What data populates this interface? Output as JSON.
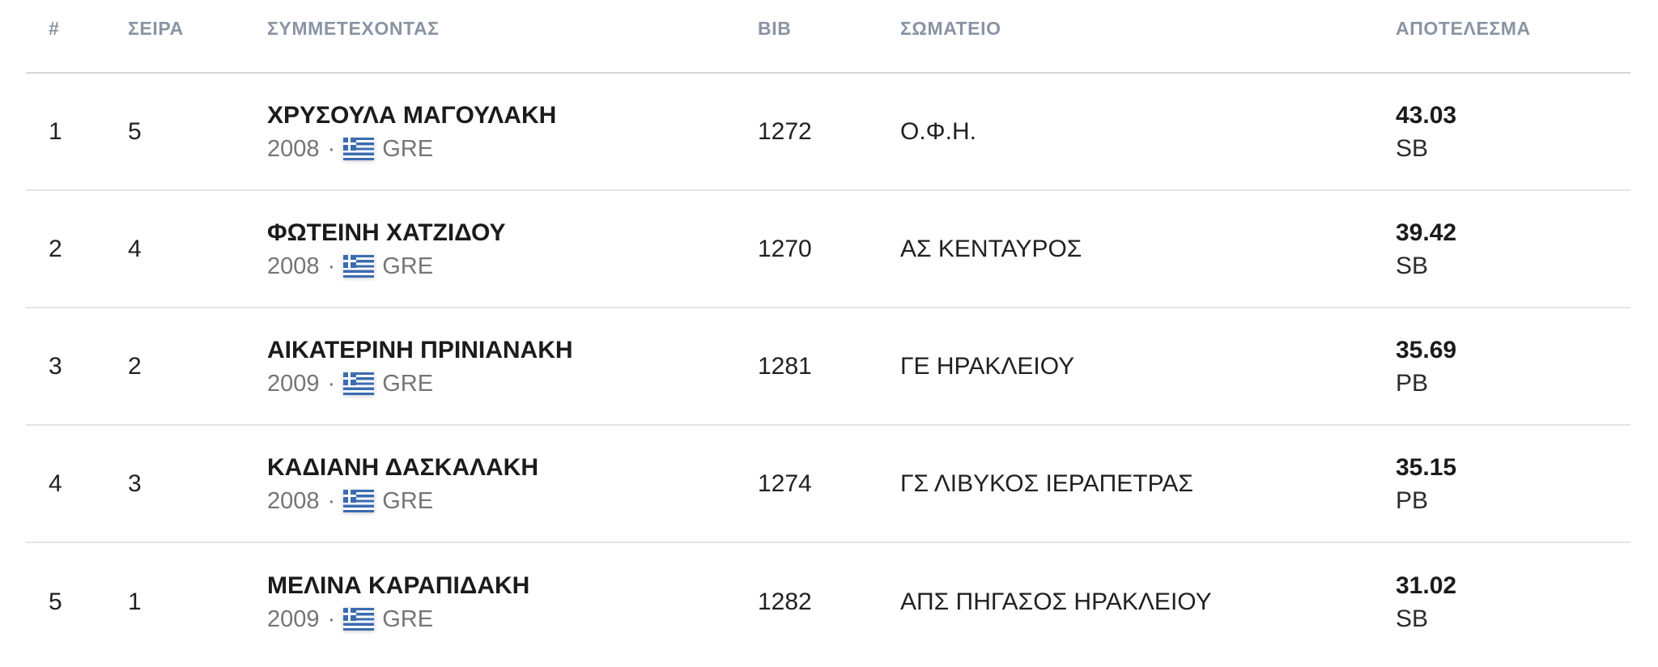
{
  "table": {
    "columns": [
      {
        "key": "rank",
        "label": "#"
      },
      {
        "key": "order",
        "label": "ΣΕΙΡΑ"
      },
      {
        "key": "participant",
        "label": "ΣΥΜΜΕΤΕΧΟΝΤΑΣ"
      },
      {
        "key": "bib",
        "label": "BIB"
      },
      {
        "key": "club",
        "label": "ΣΩΜΑΤΕΙΟ"
      },
      {
        "key": "result",
        "label": "ΑΠΟΤΕΛΕΣΜΑ"
      }
    ],
    "rows": [
      {
        "rank": "1",
        "order": "5",
        "name": "ΧΡΥΣΟΥΛΑ ΜΑΓΟΥΛΑΚΗ",
        "year": "2008",
        "separator": "·",
        "nationality": "GRE",
        "bib": "1272",
        "club": "Ο.Φ.Η.",
        "result": "43.03",
        "result_tag": "SB"
      },
      {
        "rank": "2",
        "order": "4",
        "name": "ΦΩΤΕΙΝΗ ΧΑΤΖΙΔΟΥ",
        "year": "2008",
        "separator": "·",
        "nationality": "GRE",
        "bib": "1270",
        "club": "ΑΣ ΚΕΝΤΑΥΡΟΣ",
        "result": "39.42",
        "result_tag": "SB"
      },
      {
        "rank": "3",
        "order": "2",
        "name": "ΑΙΚΑΤΕΡΙΝΗ ΠΡΙΝΙΑΝΑΚΗ",
        "year": "2009",
        "separator": "·",
        "nationality": "GRE",
        "bib": "1281",
        "club": "ΓΕ ΗΡΑΚΛΕΙΟΥ",
        "result": "35.69",
        "result_tag": "PB"
      },
      {
        "rank": "4",
        "order": "3",
        "name": "ΚΑΔΙΑΝΗ ΔΑΣΚΑΛΑΚΗ",
        "year": "2008",
        "separator": "·",
        "nationality": "GRE",
        "bib": "1274",
        "club": "ΓΣ ΛΙΒΥΚΟΣ ΙΕΡΑΠΕΤΡΑΣ",
        "result": "35.15",
        "result_tag": "PB"
      },
      {
        "rank": "5",
        "order": "1",
        "name": "ΜΕΛΙΝΑ ΚΑΡΑΠΙΔΑΚΗ",
        "year": "2009",
        "separator": "·",
        "nationality": "GRE",
        "bib": "1282",
        "club": "ΑΠΣ ΠΗΓΑΣΟΣ ΗΡΑΚΛΕΙΟΥ",
        "result": "31.02",
        "result_tag": "SB"
      }
    ],
    "flag_icon": "greece-flag",
    "colors": {
      "header_text": "#8a94a3",
      "body_text": "#212121",
      "muted_text": "#757575",
      "divider": "#e3e3e3",
      "header_divider": "#d6d6d6",
      "flag_blue": "#3c6bb0"
    }
  }
}
